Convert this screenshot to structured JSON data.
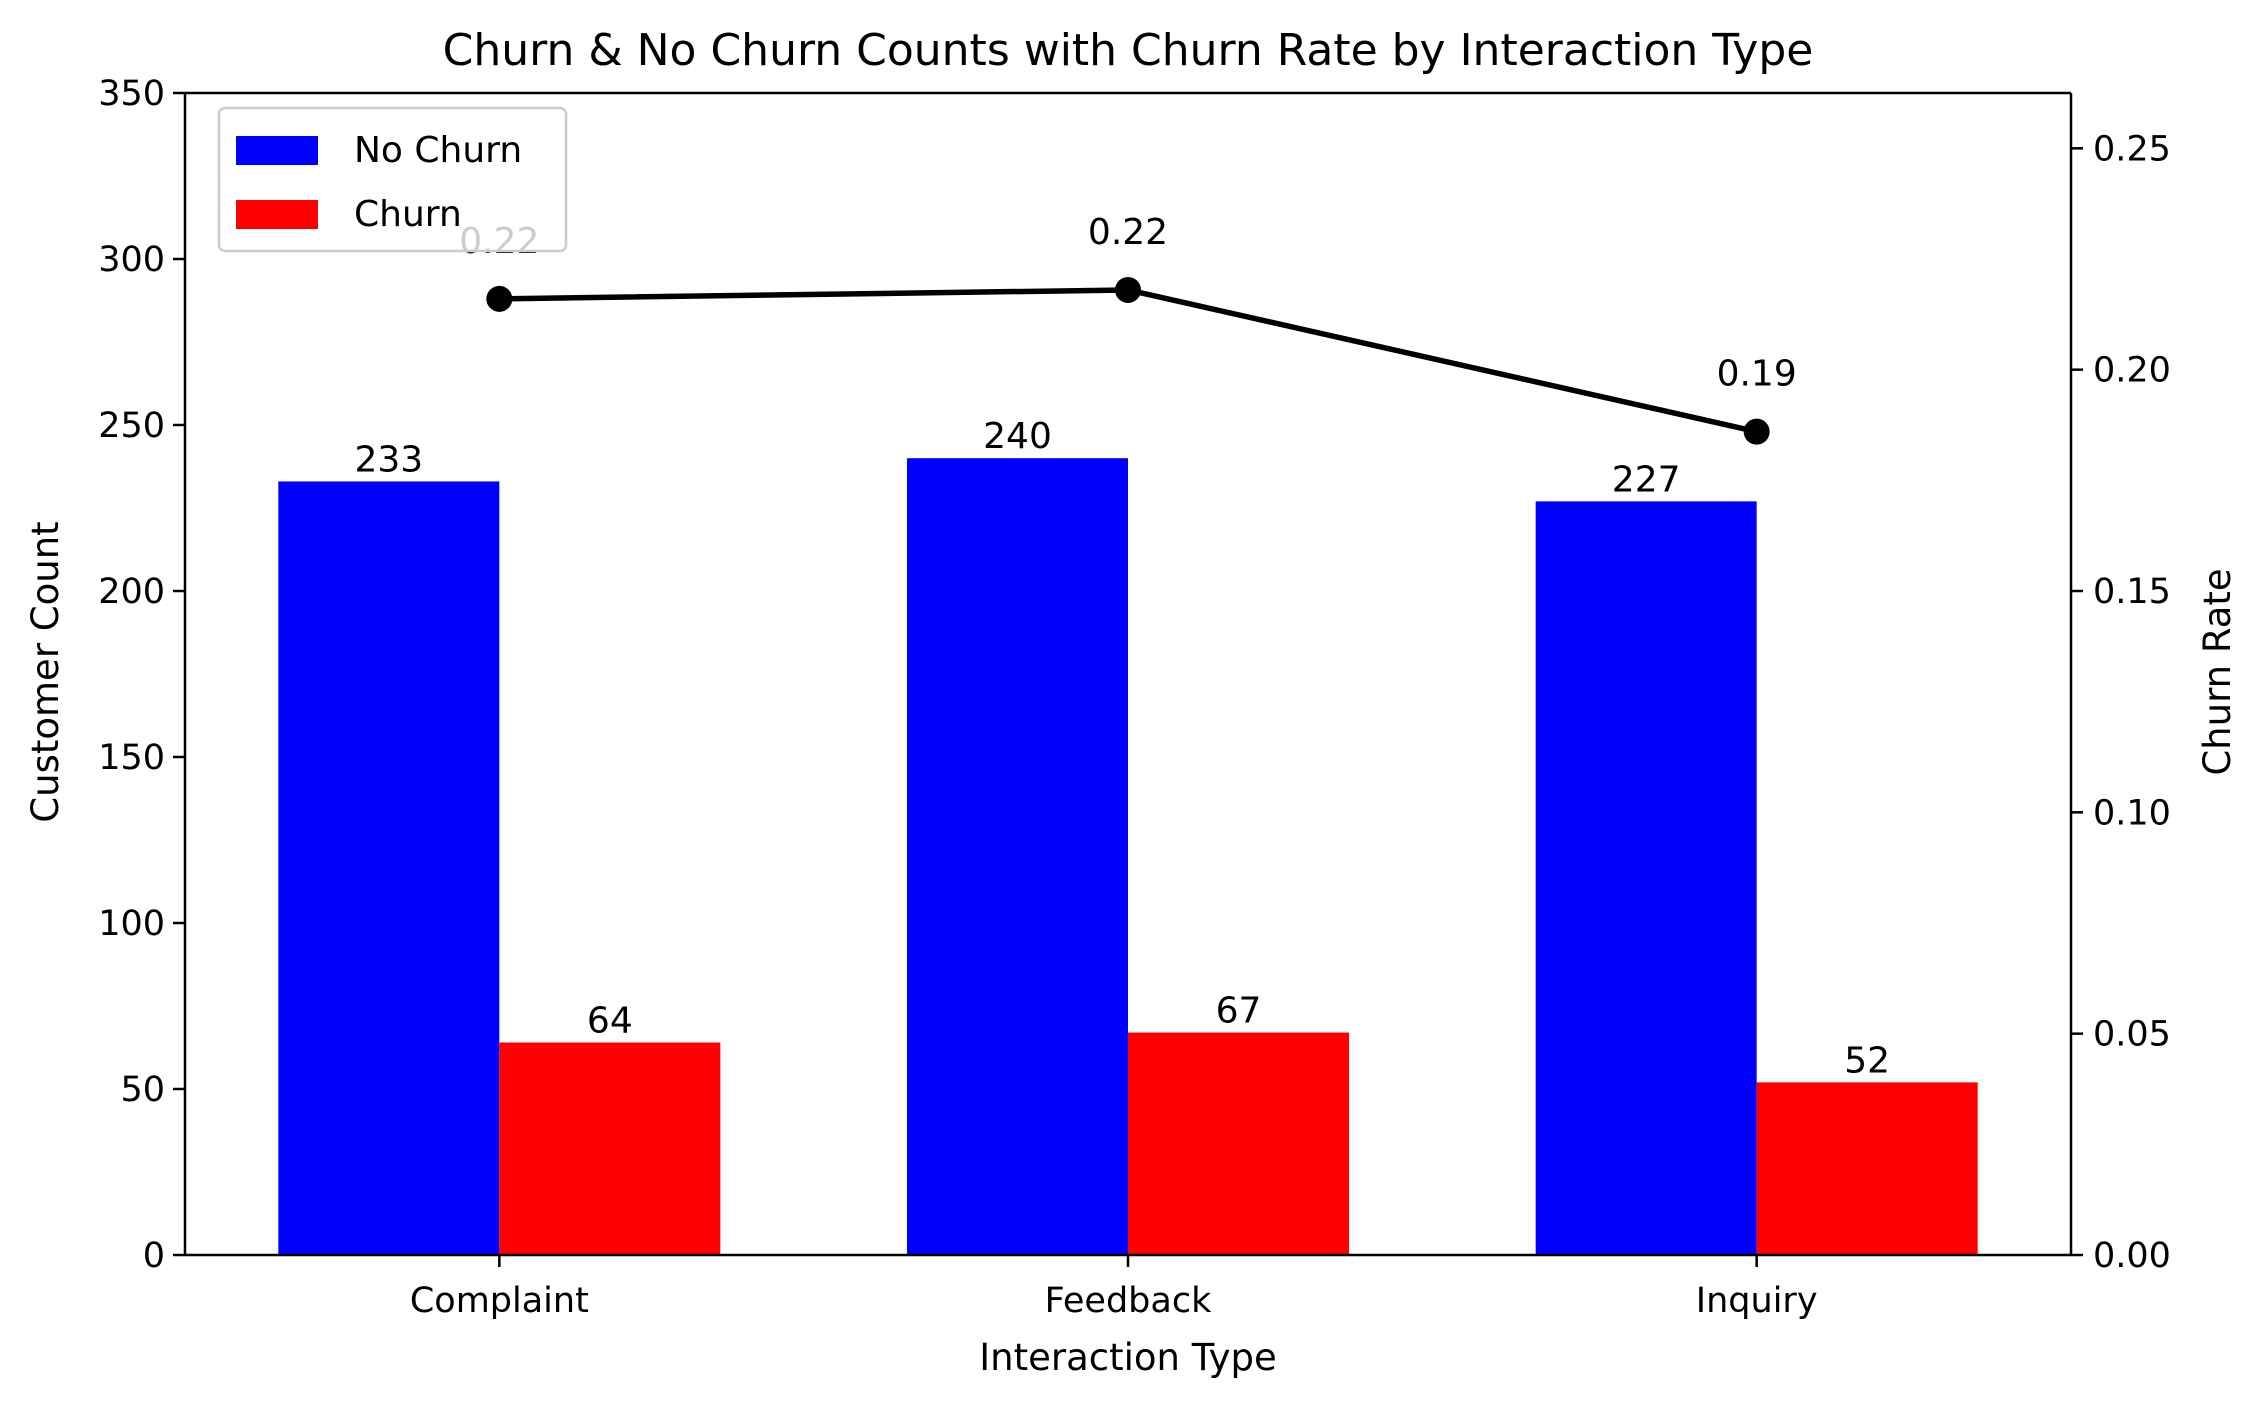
{
  "chart_data": {
    "type": "bar",
    "title": "Churn & No Churn Counts with Churn Rate by Interaction Type",
    "xlabel": "Interaction Type",
    "ylabel": "Customer Count",
    "y2label": "Churn Rate",
    "categories": [
      "Complaint",
      "Feedback",
      "Inquiry"
    ],
    "series": [
      {
        "name": "No Churn",
        "type": "bar",
        "axis": "left",
        "color": "#0000ff",
        "values": [
          233,
          240,
          227
        ]
      },
      {
        "name": "Churn",
        "type": "bar",
        "axis": "left",
        "color": "#ff0000",
        "values": [
          64,
          67,
          52
        ]
      },
      {
        "type": "line",
        "axis": "right",
        "color": "#000000",
        "values": [
          0.216,
          0.218,
          0.186
        ],
        "labels": [
          "0.22",
          "0.22",
          "0.19"
        ]
      }
    ],
    "ylim": [
      0,
      350
    ],
    "y2lim": [
      0,
      0.2625
    ],
    "yticks": [
      0,
      50,
      100,
      150,
      200,
      250,
      300,
      350
    ],
    "y2ticks": [
      "0.00",
      "0.05",
      "0.10",
      "0.15",
      "0.20",
      "0.25"
    ],
    "grid": false,
    "legend": {
      "position": "top-left",
      "entries": [
        "No Churn",
        "Churn"
      ]
    }
  }
}
